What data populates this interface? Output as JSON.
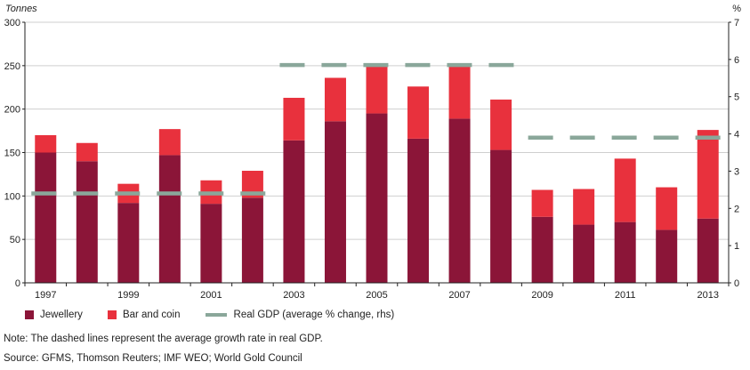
{
  "chart_data": {
    "type": "bar",
    "stacked": true,
    "left_axis_label": "Tonnes",
    "right_axis_label": "%",
    "ylim": [
      0,
      300
    ],
    "yticks": [
      0,
      50,
      100,
      150,
      200,
      250,
      300
    ],
    "y2lim": [
      0,
      7
    ],
    "y2ticks": [
      0,
      1,
      2,
      3,
      4,
      5,
      6,
      7
    ],
    "categories": [
      "1997",
      "1998",
      "1999",
      "2000",
      "2001",
      "2002",
      "2003",
      "2004",
      "2005",
      "2006",
      "2007",
      "2008",
      "2009",
      "2010",
      "2011",
      "2012",
      "2013"
    ],
    "xtick_labels": [
      "1997",
      "1999",
      "2001",
      "2003",
      "2005",
      "2007",
      "2009",
      "2011",
      "2013"
    ],
    "series": [
      {
        "name": "Jewellery",
        "color": "#8b1538",
        "values": [
          150,
          140,
          92,
          147,
          91,
          98,
          164,
          186,
          195,
          166,
          189,
          153,
          76,
          67,
          70,
          61,
          74
        ]
      },
      {
        "name": "Bar and coin",
        "color": "#e8313d",
        "values": [
          20,
          21,
          22,
          30,
          27,
          31,
          49,
          50,
          56,
          60,
          60,
          58,
          31,
          41,
          73,
          49,
          102
        ]
      }
    ],
    "gdp_line": {
      "name": "Real GDP (average % change, rhs)",
      "color": "#8aa79a",
      "segments": [
        {
          "from": "1997",
          "to": "2002",
          "value": 2.4
        },
        {
          "from": "2003",
          "to": "2008",
          "value": 5.85
        },
        {
          "from": "2009",
          "to": "2013",
          "value": 3.9
        }
      ]
    }
  },
  "legend": {
    "jewellery": "Jewellery",
    "bar_and_coin": "Bar and coin",
    "real_gdp": "Real GDP (average % change, rhs)"
  },
  "note": "Note: The dashed lines represent the average growth rate in real GDP.",
  "source": "Source: GFMS, Thomson Reuters; IMF WEO; World Gold Council"
}
